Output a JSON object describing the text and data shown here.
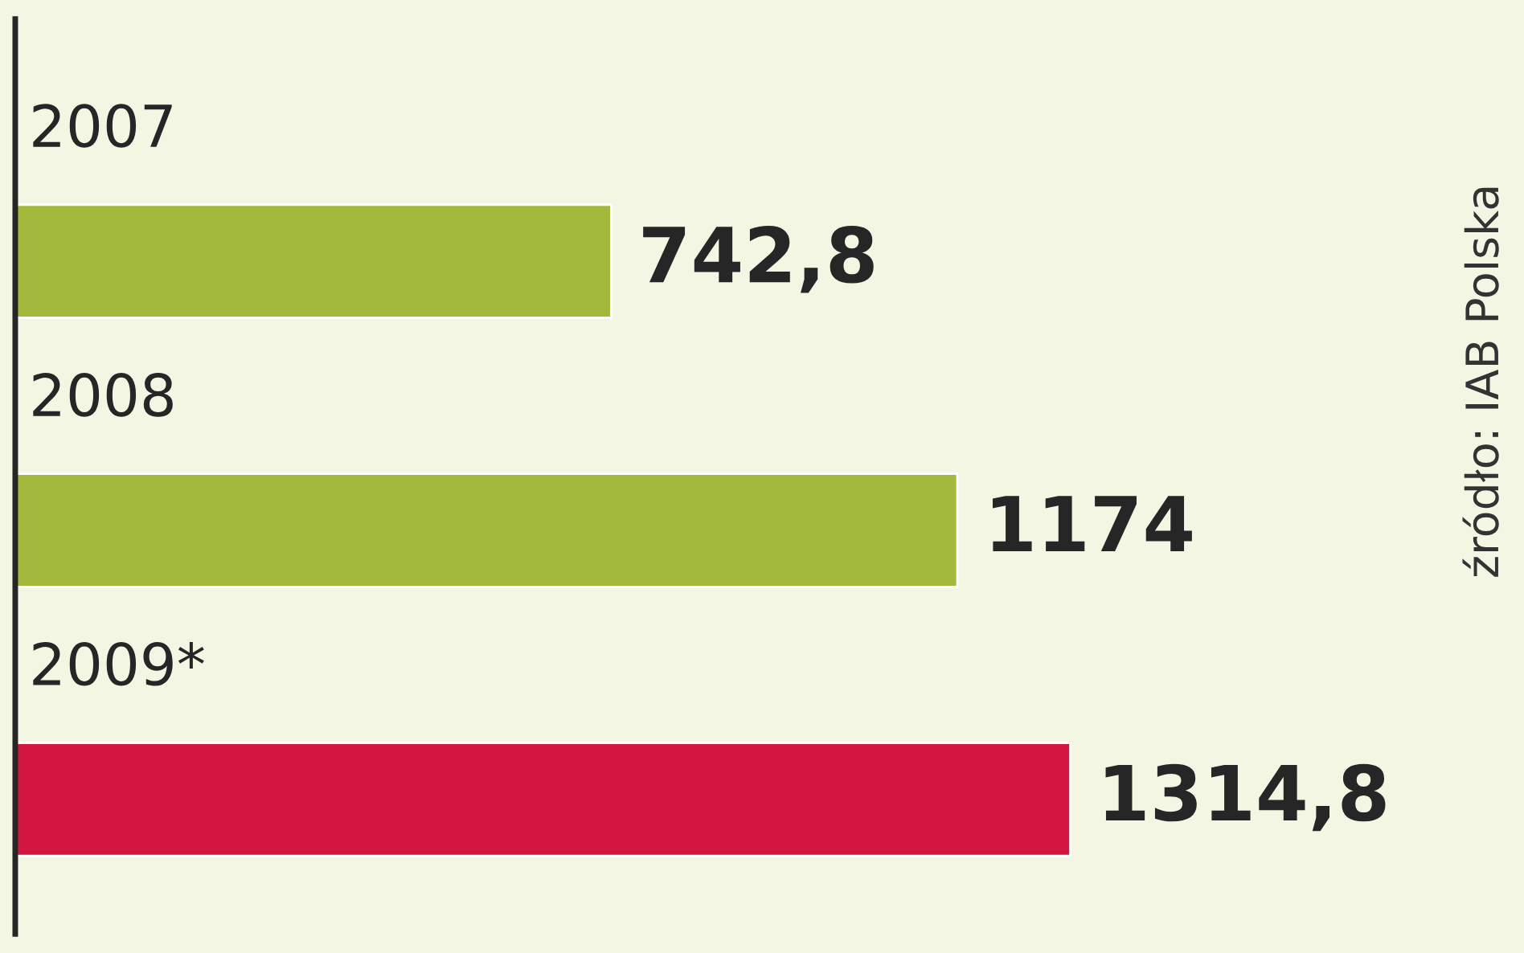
{
  "chart_data": {
    "type": "bar",
    "orientation": "horizontal",
    "categories": [
      "2007",
      "2008",
      "2009*"
    ],
    "values": [
      742.8,
      1174,
      1314.8
    ],
    "value_labels": [
      "742,8",
      "1174",
      "1314,8"
    ],
    "colors": [
      "#a3b93c",
      "#a3b93c",
      "#d3163f"
    ],
    "annotations": [
      "źródło: IAB Polska"
    ]
  }
}
